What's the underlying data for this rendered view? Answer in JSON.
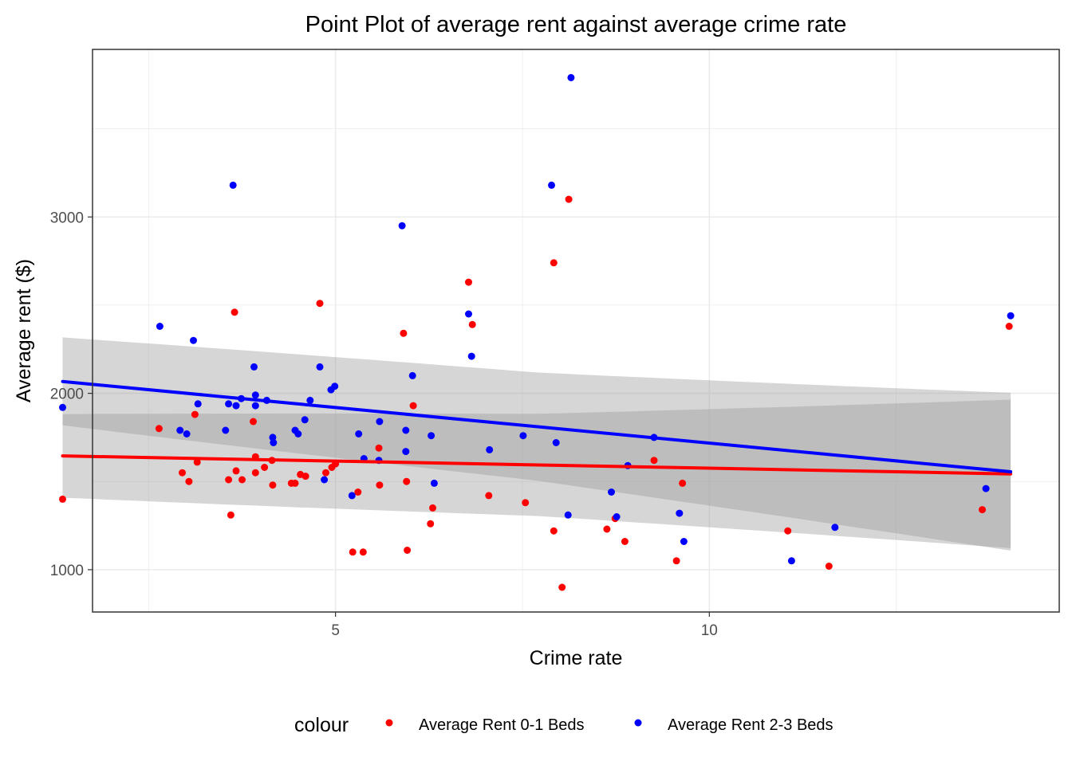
{
  "chart_data": {
    "type": "scatter",
    "title": "Point Plot of average rent against average crime rate",
    "xlabel": "Crime rate",
    "ylabel": "Average rent ($)",
    "xlim": [
      1.75,
      14.68
    ],
    "ylim": [
      760,
      3950
    ],
    "x_ticks": [
      5,
      10
    ],
    "x_minor_ticks": [
      2.5,
      7.5,
      12.5
    ],
    "y_ticks": [
      1000,
      2000,
      3000
    ],
    "y_minor_ticks": [
      1500,
      2500,
      3500
    ],
    "grid": true,
    "legend": {
      "title": "colour",
      "position": "bottom",
      "items": [
        {
          "label": "Average Rent 0-1 Beds",
          "color": "#ff0000"
        },
        {
          "label": "Average Rent 2-3 Beds",
          "color": "#0000ff"
        }
      ]
    },
    "colors": {
      "rent_0_1": "#ff0000",
      "rent_2_3": "#0000ff",
      "ribbon": "#999999"
    },
    "series": [
      {
        "name": "Average Rent 0-1 Beds",
        "color": "#ff0000",
        "points": [
          [
            1.35,
            1400
          ],
          [
            2.64,
            1800
          ],
          [
            2.95,
            1550
          ],
          [
            3.04,
            1500
          ],
          [
            3.12,
            1880
          ],
          [
            3.15,
            1610
          ],
          [
            3.57,
            1510
          ],
          [
            3.6,
            1310
          ],
          [
            3.65,
            2460
          ],
          [
            3.67,
            1560
          ],
          [
            3.75,
            1510
          ],
          [
            3.9,
            1840
          ],
          [
            3.93,
            1640
          ],
          [
            3.93,
            1550
          ],
          [
            4.05,
            1580
          ],
          [
            4.15,
            1620
          ],
          [
            4.16,
            1480
          ],
          [
            4.41,
            1490
          ],
          [
            4.46,
            1490
          ],
          [
            4.53,
            1540
          ],
          [
            4.6,
            1530
          ],
          [
            4.79,
            2510
          ],
          [
            4.87,
            1550
          ],
          [
            4.95,
            1580
          ],
          [
            5.0,
            1600
          ],
          [
            5.23,
            1100
          ],
          [
            5.3,
            1440
          ],
          [
            5.37,
            1100
          ],
          [
            5.58,
            1690
          ],
          [
            5.59,
            1480
          ],
          [
            5.91,
            2340
          ],
          [
            5.95,
            1500
          ],
          [
            5.96,
            1110
          ],
          [
            6.04,
            1930
          ],
          [
            6.27,
            1260
          ],
          [
            6.3,
            1350
          ],
          [
            6.78,
            2630
          ],
          [
            6.83,
            2390
          ],
          [
            7.05,
            1420
          ],
          [
            7.54,
            1380
          ],
          [
            7.92,
            2740
          ],
          [
            7.92,
            1220
          ],
          [
            8.03,
            900
          ],
          [
            8.12,
            3100
          ],
          [
            8.63,
            1230
          ],
          [
            8.74,
            1290
          ],
          [
            8.87,
            1160
          ],
          [
            9.26,
            1620
          ],
          [
            9.56,
            1050
          ],
          [
            9.64,
            1490
          ],
          [
            11.05,
            1220
          ],
          [
            11.6,
            1020
          ],
          [
            13.65,
            1340
          ],
          [
            14.01,
            2380
          ]
        ]
      },
      {
        "name": "Average Rent 2-3 Beds",
        "color": "#0000ff",
        "points": [
          [
            1.35,
            1920
          ],
          [
            2.65,
            2380
          ],
          [
            2.92,
            1790
          ],
          [
            3.01,
            1770
          ],
          [
            3.1,
            2300
          ],
          [
            3.16,
            1940
          ],
          [
            3.53,
            1790
          ],
          [
            3.57,
            1940
          ],
          [
            3.63,
            3180
          ],
          [
            3.67,
            1930
          ],
          [
            3.74,
            1970
          ],
          [
            3.91,
            2150
          ],
          [
            3.93,
            1930
          ],
          [
            3.93,
            1990
          ],
          [
            4.08,
            1960
          ],
          [
            4.16,
            1750
          ],
          [
            4.17,
            1720
          ],
          [
            4.46,
            1790
          ],
          [
            4.5,
            1770
          ],
          [
            4.59,
            1850
          ],
          [
            4.66,
            1960
          ],
          [
            4.79,
            2150
          ],
          [
            4.85,
            1510
          ],
          [
            4.94,
            2020
          ],
          [
            4.99,
            2040
          ],
          [
            5.22,
            1420
          ],
          [
            5.31,
            1770
          ],
          [
            5.38,
            1630
          ],
          [
            5.59,
            1840
          ],
          [
            5.58,
            1620
          ],
          [
            5.89,
            2950
          ],
          [
            5.94,
            1790
          ],
          [
            5.94,
            1670
          ],
          [
            6.03,
            2100
          ],
          [
            6.28,
            1760
          ],
          [
            6.32,
            1490
          ],
          [
            6.78,
            2450
          ],
          [
            6.82,
            2210
          ],
          [
            7.06,
            1680
          ],
          [
            7.51,
            1760
          ],
          [
            7.89,
            3180
          ],
          [
            7.95,
            1720
          ],
          [
            8.11,
            1310
          ],
          [
            8.15,
            3790
          ],
          [
            8.69,
            1440
          ],
          [
            8.76,
            1300
          ],
          [
            8.91,
            1590
          ],
          [
            9.26,
            1750
          ],
          [
            9.6,
            1320
          ],
          [
            9.66,
            1160
          ],
          [
            11.1,
            1050
          ],
          [
            11.68,
            1240
          ],
          [
            13.7,
            1460
          ],
          [
            14.03,
            2440
          ]
        ]
      }
    ],
    "trend_lines": [
      {
        "series": "Average Rent 0-1 Beds",
        "x": [
          1.35,
          14.03
        ],
        "y": [
          1645,
          1543
        ],
        "ribbon_lower": [
          1408,
          1122
        ],
        "ribbon_upper": [
          1882,
          1964
        ]
      },
      {
        "series": "Average Rent 2-3 Beds",
        "x": [
          1.35,
          14.03
        ],
        "y": [
          2067,
          1555
        ],
        "ribbon_lower": [
          1818,
          1108
        ],
        "ribbon_upper": [
          2317,
          2003
        ]
      }
    ]
  }
}
